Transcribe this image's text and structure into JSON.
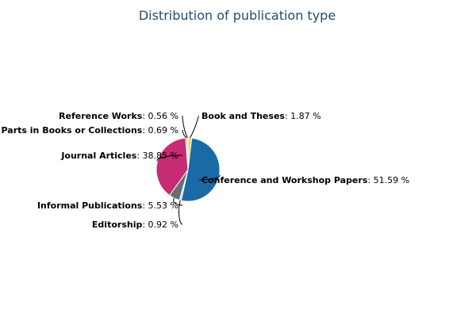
{
  "chart_data": {
    "type": "pie",
    "title": "Distribution of publication type",
    "slices": [
      {
        "name": "Book and Theses",
        "value": 1.87,
        "value_text": "1.87 %",
        "color": "#f7d15c"
      },
      {
        "name": "Conference and Workshop Papers",
        "value": 51.59,
        "value_text": "51.59 %",
        "color": "#1a6ba5"
      },
      {
        "name": "Editorship",
        "value": 0.92,
        "value_text": "0.92 %",
        "color": "#a8c7e3"
      },
      {
        "name": "Informal Publications",
        "value": 5.53,
        "value_text": "5.53 %",
        "color": "#6a6d72"
      },
      {
        "name": "Journal Articles",
        "value": 38.85,
        "value_text": "38.85 %",
        "color": "#c62b74"
      },
      {
        "name": "Parts in Books or Collections",
        "value": 0.69,
        "value_text": "0.69 %",
        "color": "#8c3a9a"
      },
      {
        "name": "Reference Works",
        "value": 0.56,
        "value_text": "0.56 %",
        "color": "#f3a8c8"
      }
    ]
  }
}
